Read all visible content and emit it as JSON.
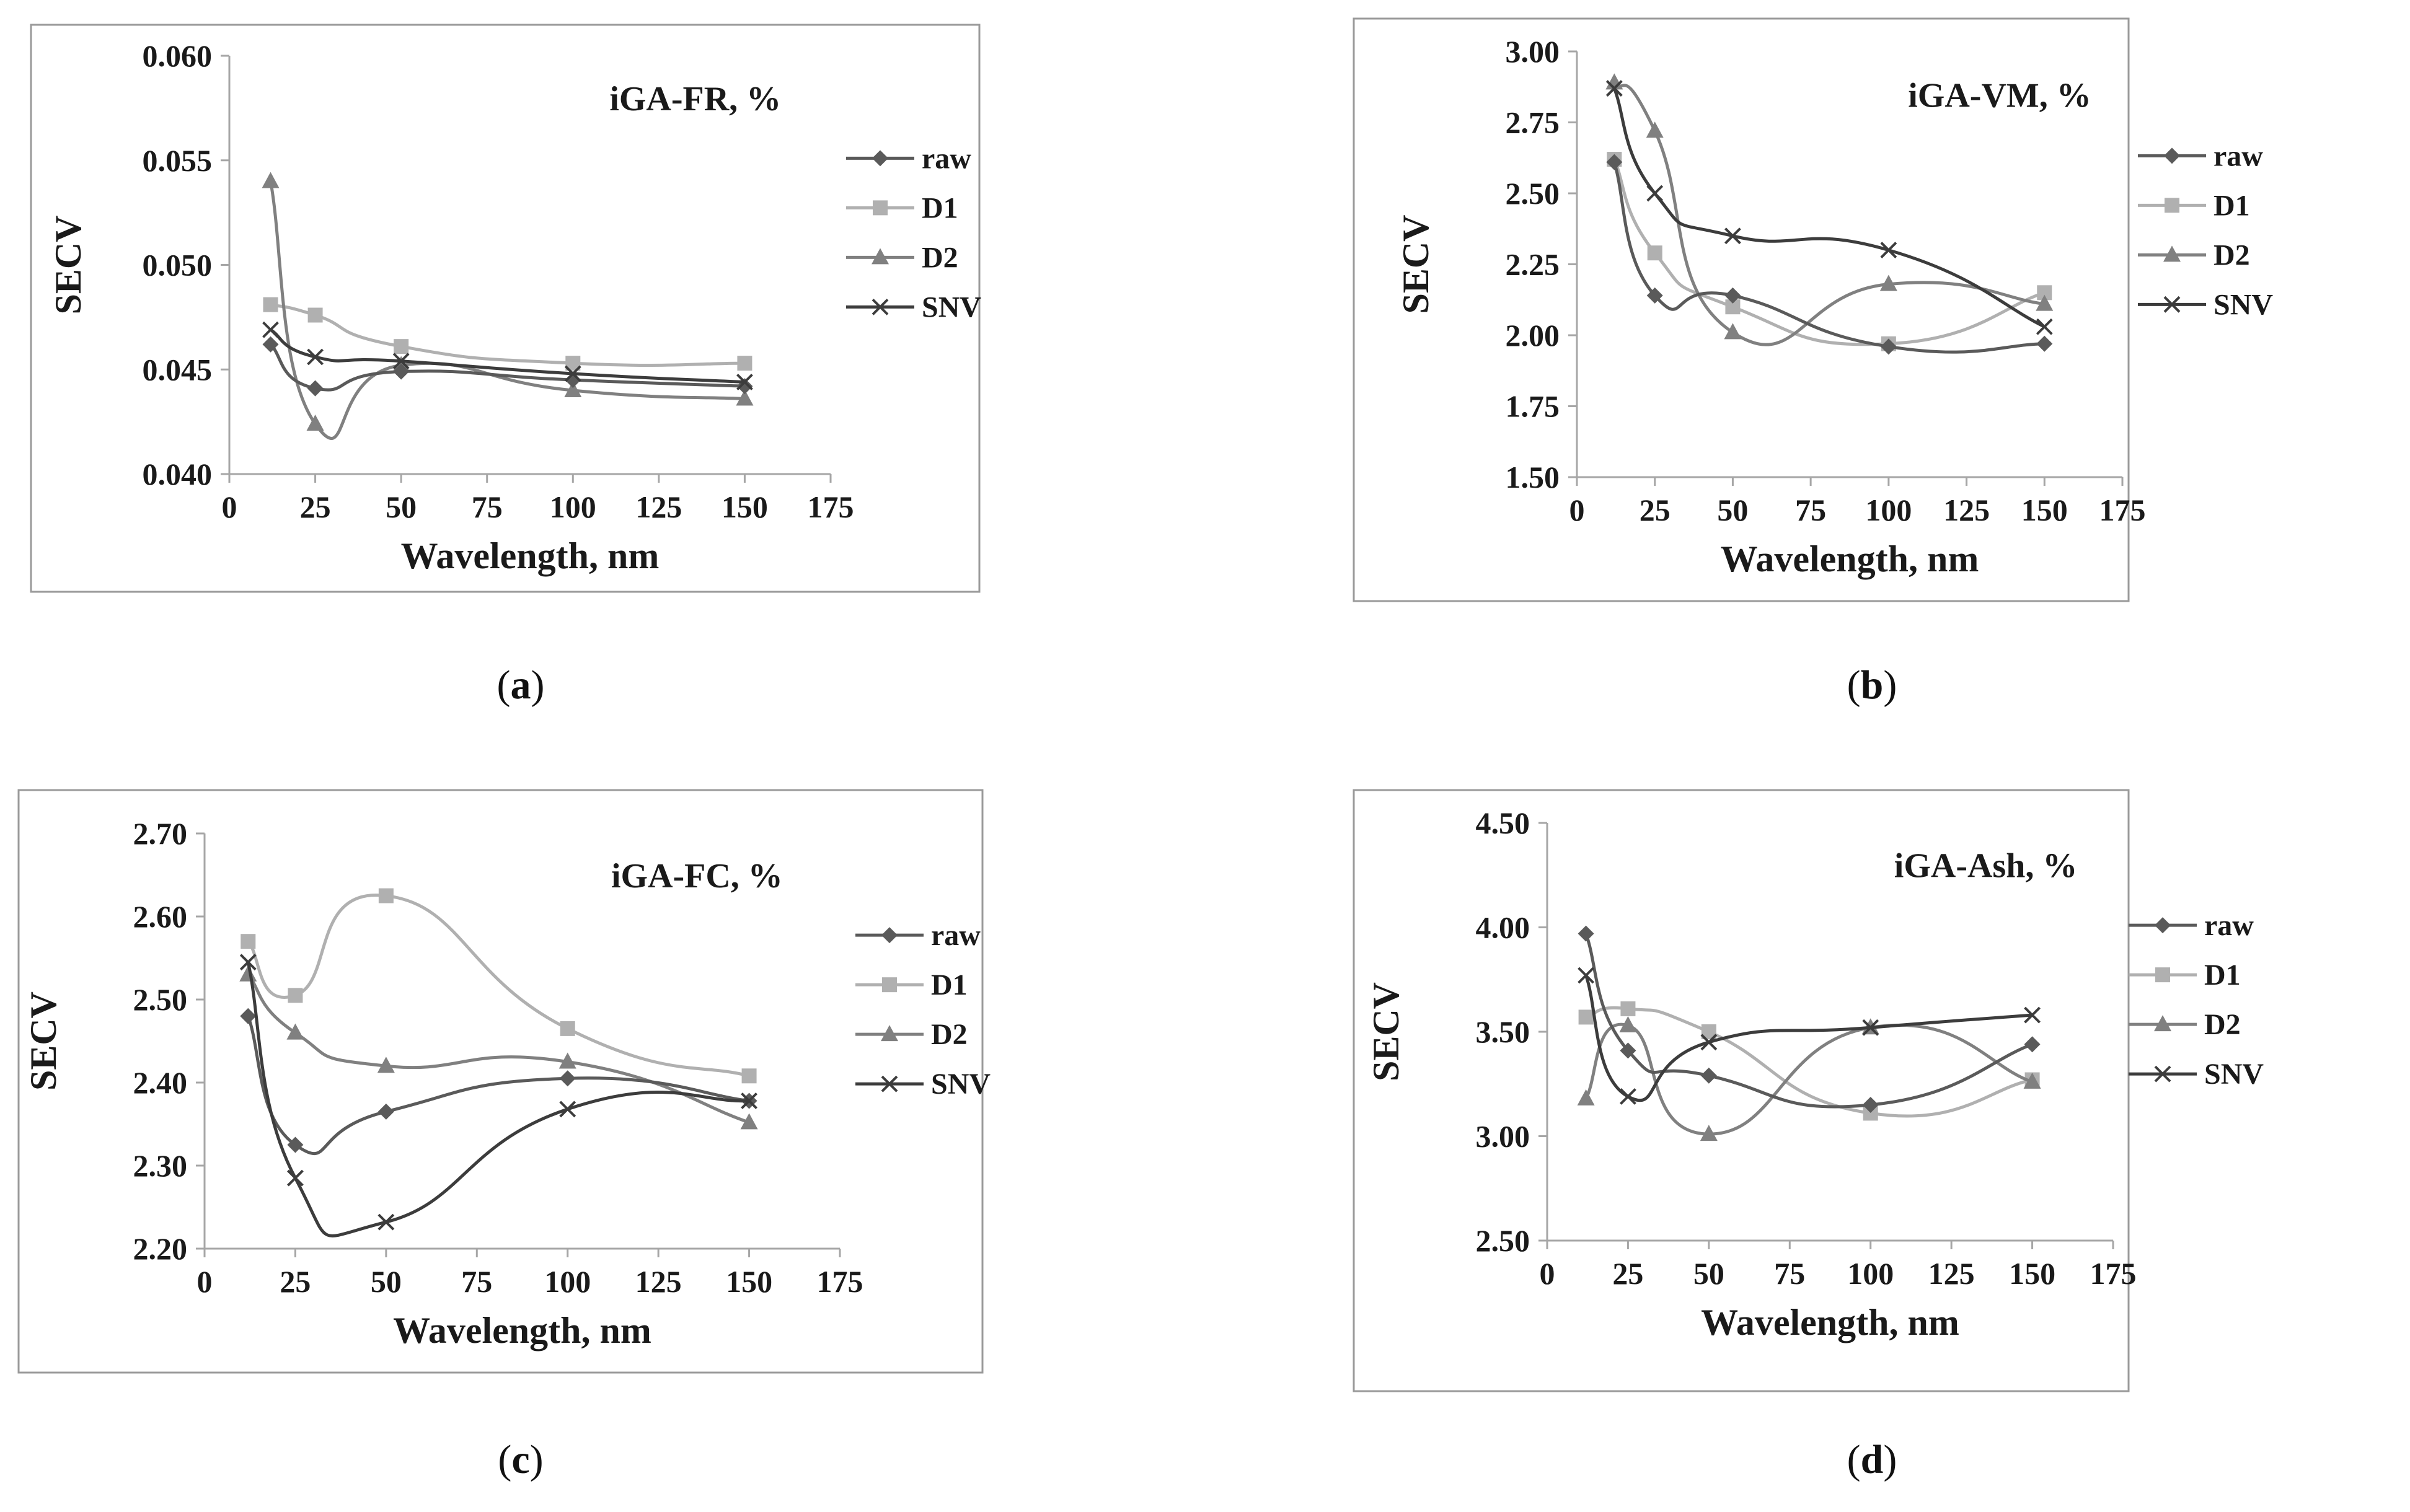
{
  "colors": {
    "raw": "#5a5a5a",
    "D1": "#b0b0b0",
    "D2": "#808080",
    "SNV": "#3c3c3c"
  },
  "chart_data": [
    {
      "type": "line",
      "panel_label": "a",
      "title": "iGA-FR, %",
      "xlabel": "Wavelength, nm",
      "ylabel": "SECV",
      "xlim": [
        0,
        175
      ],
      "xticks": [
        0,
        25,
        50,
        75,
        100,
        125,
        150,
        175
      ],
      "xtick_labels": [
        "0",
        "25",
        "50",
        "75",
        "100",
        "125",
        "150",
        "175"
      ],
      "ylim": [
        0.04,
        0.06
      ],
      "yticks": [
        0.04,
        0.045,
        0.05,
        0.055,
        0.06
      ],
      "ytick_labels": [
        "0.040",
        "0.045",
        "0.050",
        "0.055",
        "0.060"
      ],
      "x": [
        12,
        25,
        50,
        100,
        150
      ],
      "series": [
        {
          "name": "raw",
          "marker": "diamond",
          "values": [
            0.0462,
            0.0441,
            0.0449,
            0.0445,
            0.0442
          ]
        },
        {
          "name": "D1",
          "marker": "square",
          "values": [
            0.0481,
            0.0476,
            0.0461,
            0.0453,
            0.0453
          ]
        },
        {
          "name": "D2",
          "marker": "triangle",
          "values": [
            0.054,
            0.0424,
            0.0452,
            0.044,
            0.0436
          ]
        },
        {
          "name": "SNV",
          "marker": "x",
          "values": [
            0.0469,
            0.0456,
            0.0454,
            0.0448,
            0.0444
          ]
        }
      ]
    },
    {
      "type": "line",
      "panel_label": "b",
      "title": "iGA-VM, %",
      "xlabel": "Wavelength, nm",
      "ylabel": "SECV",
      "xlim": [
        0,
        175
      ],
      "xticks": [
        0,
        25,
        50,
        75,
        100,
        125,
        150,
        175
      ],
      "xtick_labels": [
        "0",
        "25",
        "50",
        "75",
        "100",
        "125",
        "150",
        "175"
      ],
      "ylim": [
        1.5,
        3.0
      ],
      "yticks": [
        1.5,
        1.75,
        2.0,
        2.25,
        2.5,
        2.75,
        3.0
      ],
      "ytick_labels": [
        "1.50",
        "1.75",
        "2.00",
        "2.25",
        "2.50",
        "2.75",
        "3.00"
      ],
      "x": [
        12,
        25,
        50,
        100,
        150
      ],
      "series": [
        {
          "name": "raw",
          "marker": "diamond",
          "values": [
            2.61,
            2.14,
            2.14,
            1.96,
            1.97
          ]
        },
        {
          "name": "D1",
          "marker": "square",
          "values": [
            2.62,
            2.29,
            2.1,
            1.97,
            2.15
          ]
        },
        {
          "name": "D2",
          "marker": "triangle",
          "values": [
            2.89,
            2.72,
            2.01,
            2.18,
            2.11
          ]
        },
        {
          "name": "SNV",
          "marker": "x",
          "values": [
            2.87,
            2.5,
            2.35,
            2.3,
            2.03
          ]
        }
      ]
    },
    {
      "type": "line",
      "panel_label": "c",
      "title": "iGA-FC, %",
      "xlabel": "Wavelength, nm",
      "ylabel": "SECV",
      "xlim": [
        0,
        175
      ],
      "xticks": [
        0,
        25,
        50,
        75,
        100,
        125,
        150,
        175
      ],
      "xtick_labels": [
        "0",
        "25",
        "50",
        "75",
        "100",
        "125",
        "150",
        "175"
      ],
      "ylim": [
        2.2,
        2.7
      ],
      "yticks": [
        2.2,
        2.3,
        2.4,
        2.5,
        2.6,
        2.7
      ],
      "ytick_labels": [
        "2.20",
        "2.30",
        "2.40",
        "2.50",
        "2.60",
        "2.70"
      ],
      "x": [
        12,
        25,
        50,
        100,
        150
      ],
      "series": [
        {
          "name": "raw",
          "marker": "diamond",
          "values": [
            2.48,
            2.325,
            2.365,
            2.405,
            2.378
          ]
        },
        {
          "name": "D1",
          "marker": "square",
          "values": [
            2.57,
            2.505,
            2.625,
            2.465,
            2.408
          ]
        },
        {
          "name": "D2",
          "marker": "triangle",
          "values": [
            2.53,
            2.46,
            2.42,
            2.425,
            2.352
          ]
        },
        {
          "name": "SNV",
          "marker": "x",
          "values": [
            2.545,
            2.285,
            2.232,
            2.368,
            2.378
          ]
        }
      ]
    },
    {
      "type": "line",
      "panel_label": "d",
      "title": "iGA-Ash, %",
      "xlabel": "Wavelength, nm",
      "ylabel": "SECV",
      "xlim": [
        0,
        175
      ],
      "xticks": [
        0,
        25,
        50,
        75,
        100,
        125,
        150,
        175
      ],
      "xtick_labels": [
        "0",
        "25",
        "50",
        "75",
        "100",
        "125",
        "150",
        "175"
      ],
      "ylim": [
        2.5,
        4.5
      ],
      "yticks": [
        2.5,
        3.0,
        3.5,
        4.0,
        4.5
      ],
      "ytick_labels": [
        "2.50",
        "3.00",
        "3.50",
        "4.00",
        "4.50"
      ],
      "x": [
        12,
        25,
        50,
        100,
        150
      ],
      "series": [
        {
          "name": "raw",
          "marker": "diamond",
          "values": [
            3.97,
            3.41,
            3.29,
            3.15,
            3.44
          ]
        },
        {
          "name": "D1",
          "marker": "square",
          "values": [
            3.57,
            3.61,
            3.5,
            3.11,
            3.27
          ]
        },
        {
          "name": "D2",
          "marker": "triangle",
          "values": [
            3.18,
            3.53,
            3.01,
            3.52,
            3.26
          ]
        },
        {
          "name": "SNV",
          "marker": "x",
          "values": [
            3.77,
            3.19,
            3.45,
            3.52,
            3.58
          ]
        }
      ]
    }
  ]
}
